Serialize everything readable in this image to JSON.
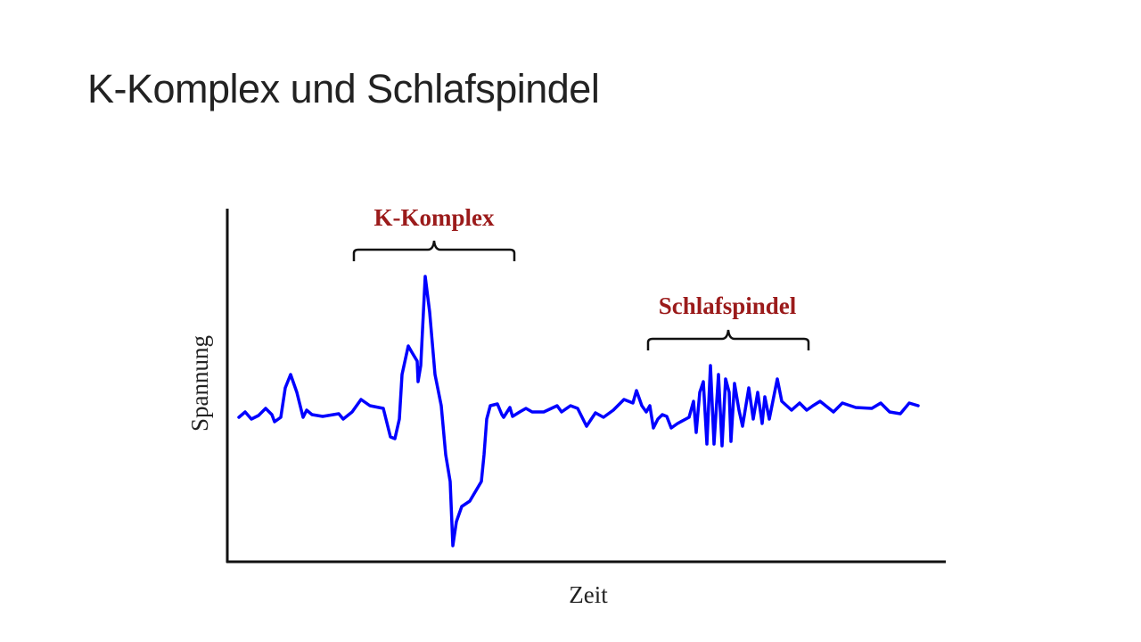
{
  "slide": {
    "title": "K-Komplex und Schlafspindel"
  },
  "diagram": {
    "y_axis_label": "Spannung",
    "x_axis_label": "Zeit",
    "annotations": [
      {
        "label": "K-Komplex",
        "color": "#9b1b1b"
      },
      {
        "label": "Schlafspindel",
        "color": "#9b1b1b"
      }
    ],
    "signal_color": "#0000ff"
  }
}
